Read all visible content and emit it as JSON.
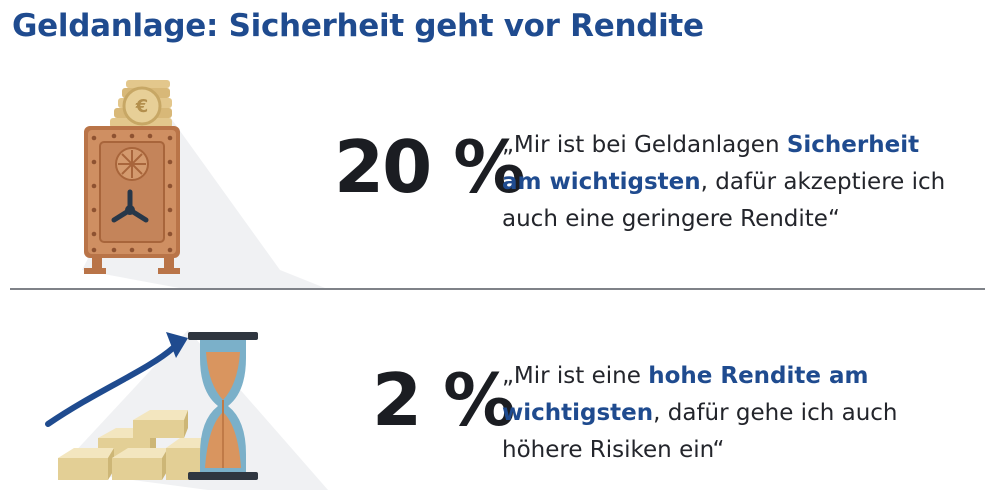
{
  "title": "Geldanlage: Sicherheit geht vor Rendite",
  "items": [
    {
      "percent": "20 %",
      "quote": {
        "line1_a": "„Mir ist bei Geldanlagen ",
        "line1_b": "Sicherheit",
        "line2_a": "am wichtigsten",
        "line2_b": ", dafür akzeptiere ich",
        "line3": "auch eine geringere Rendite“"
      },
      "icon": "safe-with-coins-icon"
    },
    {
      "percent": "2 %",
      "quote": {
        "line1_a": "„Mir ist eine ",
        "line1_b": "hohe Rendite am",
        "line2_a": "wichtigsten",
        "line2_b": ", dafür gehe ich auch",
        "line3": "höhere Risiken ein“"
      },
      "icon": "gold-bars-hourglass-icon"
    }
  ],
  "colors": {
    "accent": "#1f4b8f",
    "text": "#23252b",
    "safe": "#c98a5e",
    "gold": "#e9d9a8",
    "hourglass_frame": "#2f3640",
    "hourglass_glass": "#7bb0c9",
    "sand": "#d9955f",
    "arrow": "#1f4b8f"
  }
}
